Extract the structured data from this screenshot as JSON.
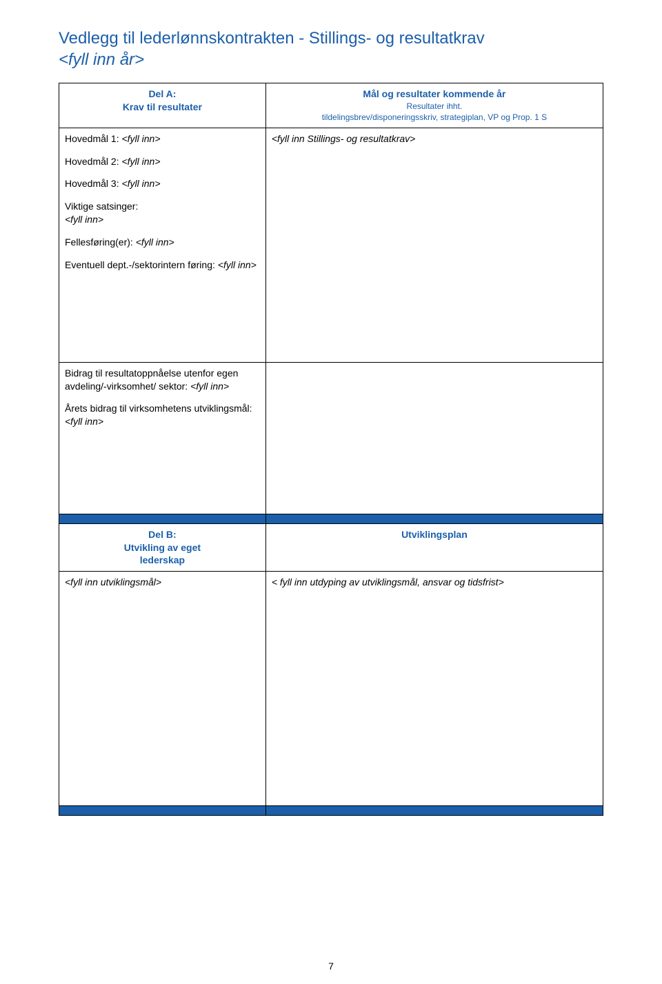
{
  "title": {
    "line1": "Vedlegg til lederlønnskontrakten - Stillings- og resultatkrav",
    "line2_prefix": "<fyll inn år>"
  },
  "table": {
    "header": {
      "left_l1": "Del A:",
      "left_l2": "Krav til resultater",
      "right_l1": "Mål og resultater kommende år",
      "right_l2": "Resultater ihht.",
      "right_l3": "tildelingsbrev/disponeringsskriv, strategiplan, VP og Prop. 1 S"
    },
    "row1": {
      "left": {
        "h1_label": "Hovedmål 1:  ",
        "h1_val": "<fyll inn>",
        "h2_label": "Hovedmål 2: ",
        "h2_val": "<fyll inn>",
        "h3_label": "Hovedmål 3:  ",
        "h3_val": "<fyll inn>",
        "sats_label": "Viktige satsinger:",
        "sats_val": "<fyll inn>",
        "felles_label": "Fellesføring(er): ",
        "felles_val": "<fyll inn>",
        "dept_label": "Eventuell dept.-/sektorintern føring: ",
        "dept_val": "<fyll inn>"
      },
      "right": "<fyll inn Stillings- og resultatkrav>"
    },
    "row2": {
      "left": {
        "bidrag_label": "Bidrag til resultatoppnåelse utenfor egen avdeling/-virksomhet/ sektor: ",
        "bidrag_val": "<fyll inn>",
        "arets_label": "Årets bidrag til virksomhetens utviklingsmål:",
        "arets_val": "<fyll inn>"
      }
    },
    "header2": {
      "left_l1": "Del B:",
      "left_l2": "Utvikling av eget",
      "left_l3": "lederskap",
      "right": "Utviklingsplan"
    },
    "row3": {
      "left": "<fyll inn utviklingsmål>",
      "right": "< fyll inn utdyping av utviklingsmål, ansvar og tidsfrist>"
    }
  },
  "page_number": "7",
  "colors": {
    "brand_blue": "#1b5faa",
    "border": "#000000",
    "bg": "#ffffff",
    "text": "#000000"
  }
}
